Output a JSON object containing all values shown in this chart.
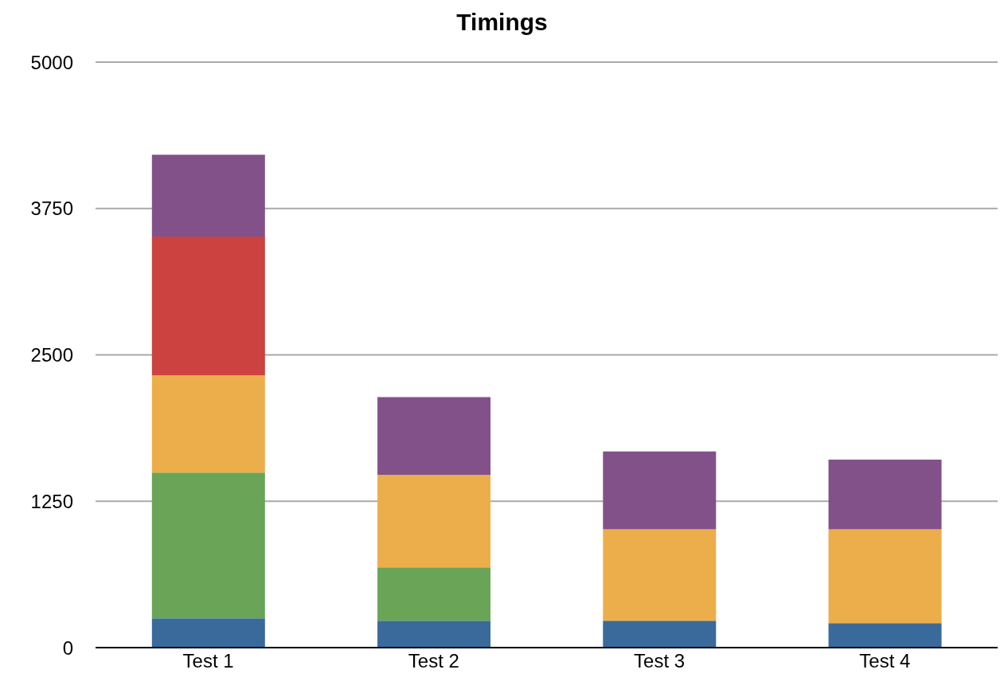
{
  "chart_data": {
    "type": "bar",
    "title": "Timings",
    "categories": [
      "Test 1",
      "Test 2",
      "Test 3",
      "Test 4"
    ],
    "stacked": true,
    "series": [
      {
        "color": "#3a6a9c",
        "values": [
          250,
          230,
          230,
          210
        ]
      },
      {
        "color": "#6aa457",
        "values": [
          1245,
          455,
          0,
          0
        ]
      },
      {
        "color": "#ecae4b",
        "values": [
          830,
          790,
          780,
          800
        ]
      },
      {
        "color": "#cb4240",
        "values": [
          1185,
          0,
          0,
          0
        ]
      },
      {
        "color": "#83518a",
        "values": [
          700,
          665,
          665,
          595
        ]
      }
    ],
    "ylim": [
      0,
      5000
    ],
    "yticks": [
      0,
      1250,
      2500,
      3750,
      5000
    ],
    "grid": "y",
    "legend": false
  }
}
